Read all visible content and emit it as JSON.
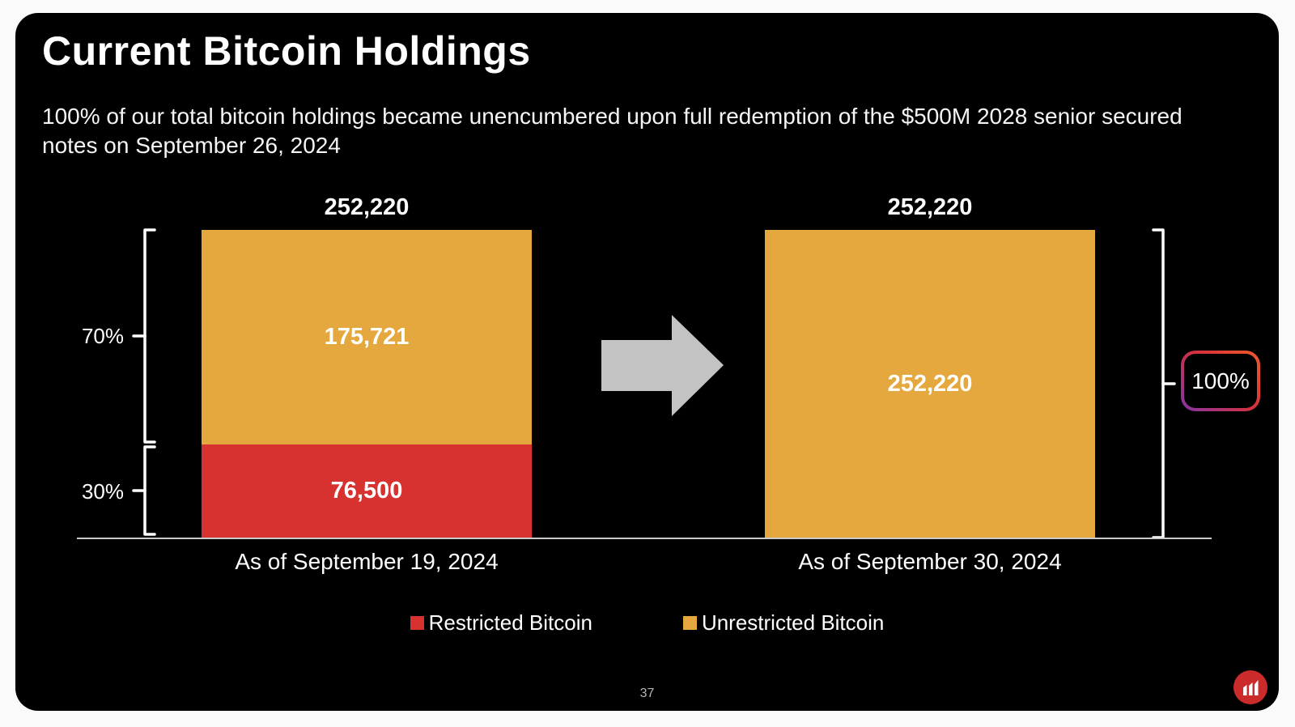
{
  "header": {
    "title": "Current Bitcoin Holdings",
    "subtitle_lines": [
      "100% of our total bitcoin holdings became unencumbered upon full redemption of the $500M 2028 senior secured",
      "notes on September 26, 2024"
    ]
  },
  "chart_data": {
    "type": "bar",
    "subtype": "stacked",
    "title": "Current Bitcoin Holdings",
    "categories": [
      "As of September 19, 2024",
      "As of September 30, 2024"
    ],
    "series": [
      {
        "name": "Restricted Bitcoin",
        "color": "#d73230",
        "values": [
          76500,
          0
        ]
      },
      {
        "name": "Unrestricted Bitcoin",
        "color": "#e5a83e",
        "values": [
          175721,
          252220
        ]
      }
    ],
    "totals": [
      252220,
      252220
    ],
    "total_labels": [
      "252,220",
      "252,220"
    ],
    "segment_labels": {
      "bar1_unrestricted": "175,721",
      "bar1_restricted": "76,500",
      "bar2_unrestricted": "252,220"
    },
    "pct_labels": {
      "bar1_unrestricted": "70%",
      "bar1_restricted": "30%",
      "bar2_total": "100%"
    },
    "legend": [
      {
        "label": "Restricted Bitcoin",
        "color": "#d73230"
      },
      {
        "label": "Unrestricted Bitcoin",
        "color": "#e5a83e"
      }
    ],
    "ylim": [
      0,
      252220
    ],
    "grid": false,
    "legend_position": "bottom",
    "annotations": [
      "gray right arrow between bars"
    ]
  },
  "footer": {
    "page_number": "37"
  },
  "icons": {
    "arrow": "block-arrow-right",
    "logo": "mara-logo",
    "brackets": "white square brackets with mid ticks"
  },
  "colors": {
    "slide_bg": "#000000",
    "page_bg": "#fafafb",
    "restricted_red": "#d73230",
    "unrestricted_orange": "#e5a83e",
    "arrow_gray": "#c3c3c3",
    "axis_gray": "#cccccc",
    "badge_gradient_start": "#8335a6",
    "badge_gradient_mid": "#d8313c",
    "badge_gradient_end": "#f05a2a",
    "logo_red": "#cc2b2b"
  }
}
